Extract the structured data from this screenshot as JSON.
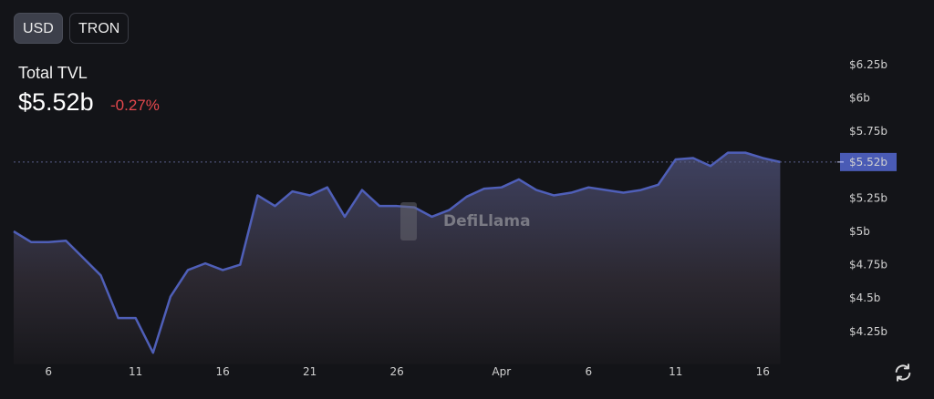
{
  "toggle": {
    "options": [
      "USD",
      "TRON"
    ],
    "selected": "USD"
  },
  "summary": {
    "label": "Total TVL",
    "value": "$5.52b",
    "change": "-0.27%",
    "change_color": "#e5484d"
  },
  "watermark": "DefiLlama",
  "colors": {
    "line": "#4f5fb8",
    "current_price_tag": "#4a5bb5",
    "background": "#131418"
  },
  "icons": {
    "refresh": "refresh-icon"
  },
  "chart_data": {
    "type": "area",
    "title": "",
    "xlabel": "",
    "ylabel": "",
    "ylim": [
      4.1,
      6.3
    ],
    "y_ticks": [
      4.25,
      4.5,
      4.75,
      5,
      5.25,
      5.5,
      5.75,
      6,
      6.25
    ],
    "y_tick_labels": [
      "$4.25b",
      "$4.5b",
      "$4.75b",
      "$5b",
      "$5.25b",
      "",
      "$5.75b",
      "$6b",
      "$6.25b"
    ],
    "x_tick_labels": [
      {
        "date": "Mar 6",
        "label": "6"
      },
      {
        "date": "Mar 11",
        "label": "11"
      },
      {
        "date": "Mar 16",
        "label": "16"
      },
      {
        "date": "Mar 21",
        "label": "21"
      },
      {
        "date": "Mar 26",
        "label": "26"
      },
      {
        "date": "Apr 1",
        "label": "Apr"
      },
      {
        "date": "Apr 6",
        "label": "6"
      },
      {
        "date": "Apr 11",
        "label": "11"
      },
      {
        "date": "Apr 16",
        "label": "16"
      }
    ],
    "current_value": 5.52,
    "current_label": "$5.52b",
    "grid": false,
    "unit": "USD billions",
    "x": [
      "Mar 4",
      "Mar 5",
      "Mar 6",
      "Mar 7",
      "Mar 8",
      "Mar 9",
      "Mar 10",
      "Mar 11",
      "Mar 12",
      "Mar 13",
      "Mar 14",
      "Mar 15",
      "Mar 16",
      "Mar 17",
      "Mar 18",
      "Mar 19",
      "Mar 20",
      "Mar 21",
      "Mar 22",
      "Mar 23",
      "Mar 24",
      "Mar 25",
      "Mar 26",
      "Mar 27",
      "Mar 28",
      "Mar 29",
      "Mar 30",
      "Mar 31",
      "Apr 1",
      "Apr 2",
      "Apr 3",
      "Apr 4",
      "Apr 5",
      "Apr 6",
      "Apr 7",
      "Apr 8",
      "Apr 9",
      "Apr 10",
      "Apr 11",
      "Apr 12",
      "Apr 13",
      "Apr 14",
      "Apr 15",
      "Apr 16",
      "Apr 17"
    ],
    "values": [
      5.0,
      4.92,
      4.92,
      4.93,
      4.8,
      4.67,
      4.35,
      4.35,
      4.09,
      4.51,
      4.71,
      4.76,
      4.71,
      4.75,
      5.27,
      5.19,
      5.3,
      5.27,
      5.33,
      5.11,
      5.31,
      5.19,
      5.19,
      5.18,
      5.11,
      5.16,
      5.26,
      5.32,
      5.33,
      5.39,
      5.31,
      5.27,
      5.29,
      5.33,
      5.31,
      5.29,
      5.31,
      5.35,
      5.54,
      5.55,
      5.49,
      5.59,
      5.59,
      5.55,
      5.52
    ]
  }
}
